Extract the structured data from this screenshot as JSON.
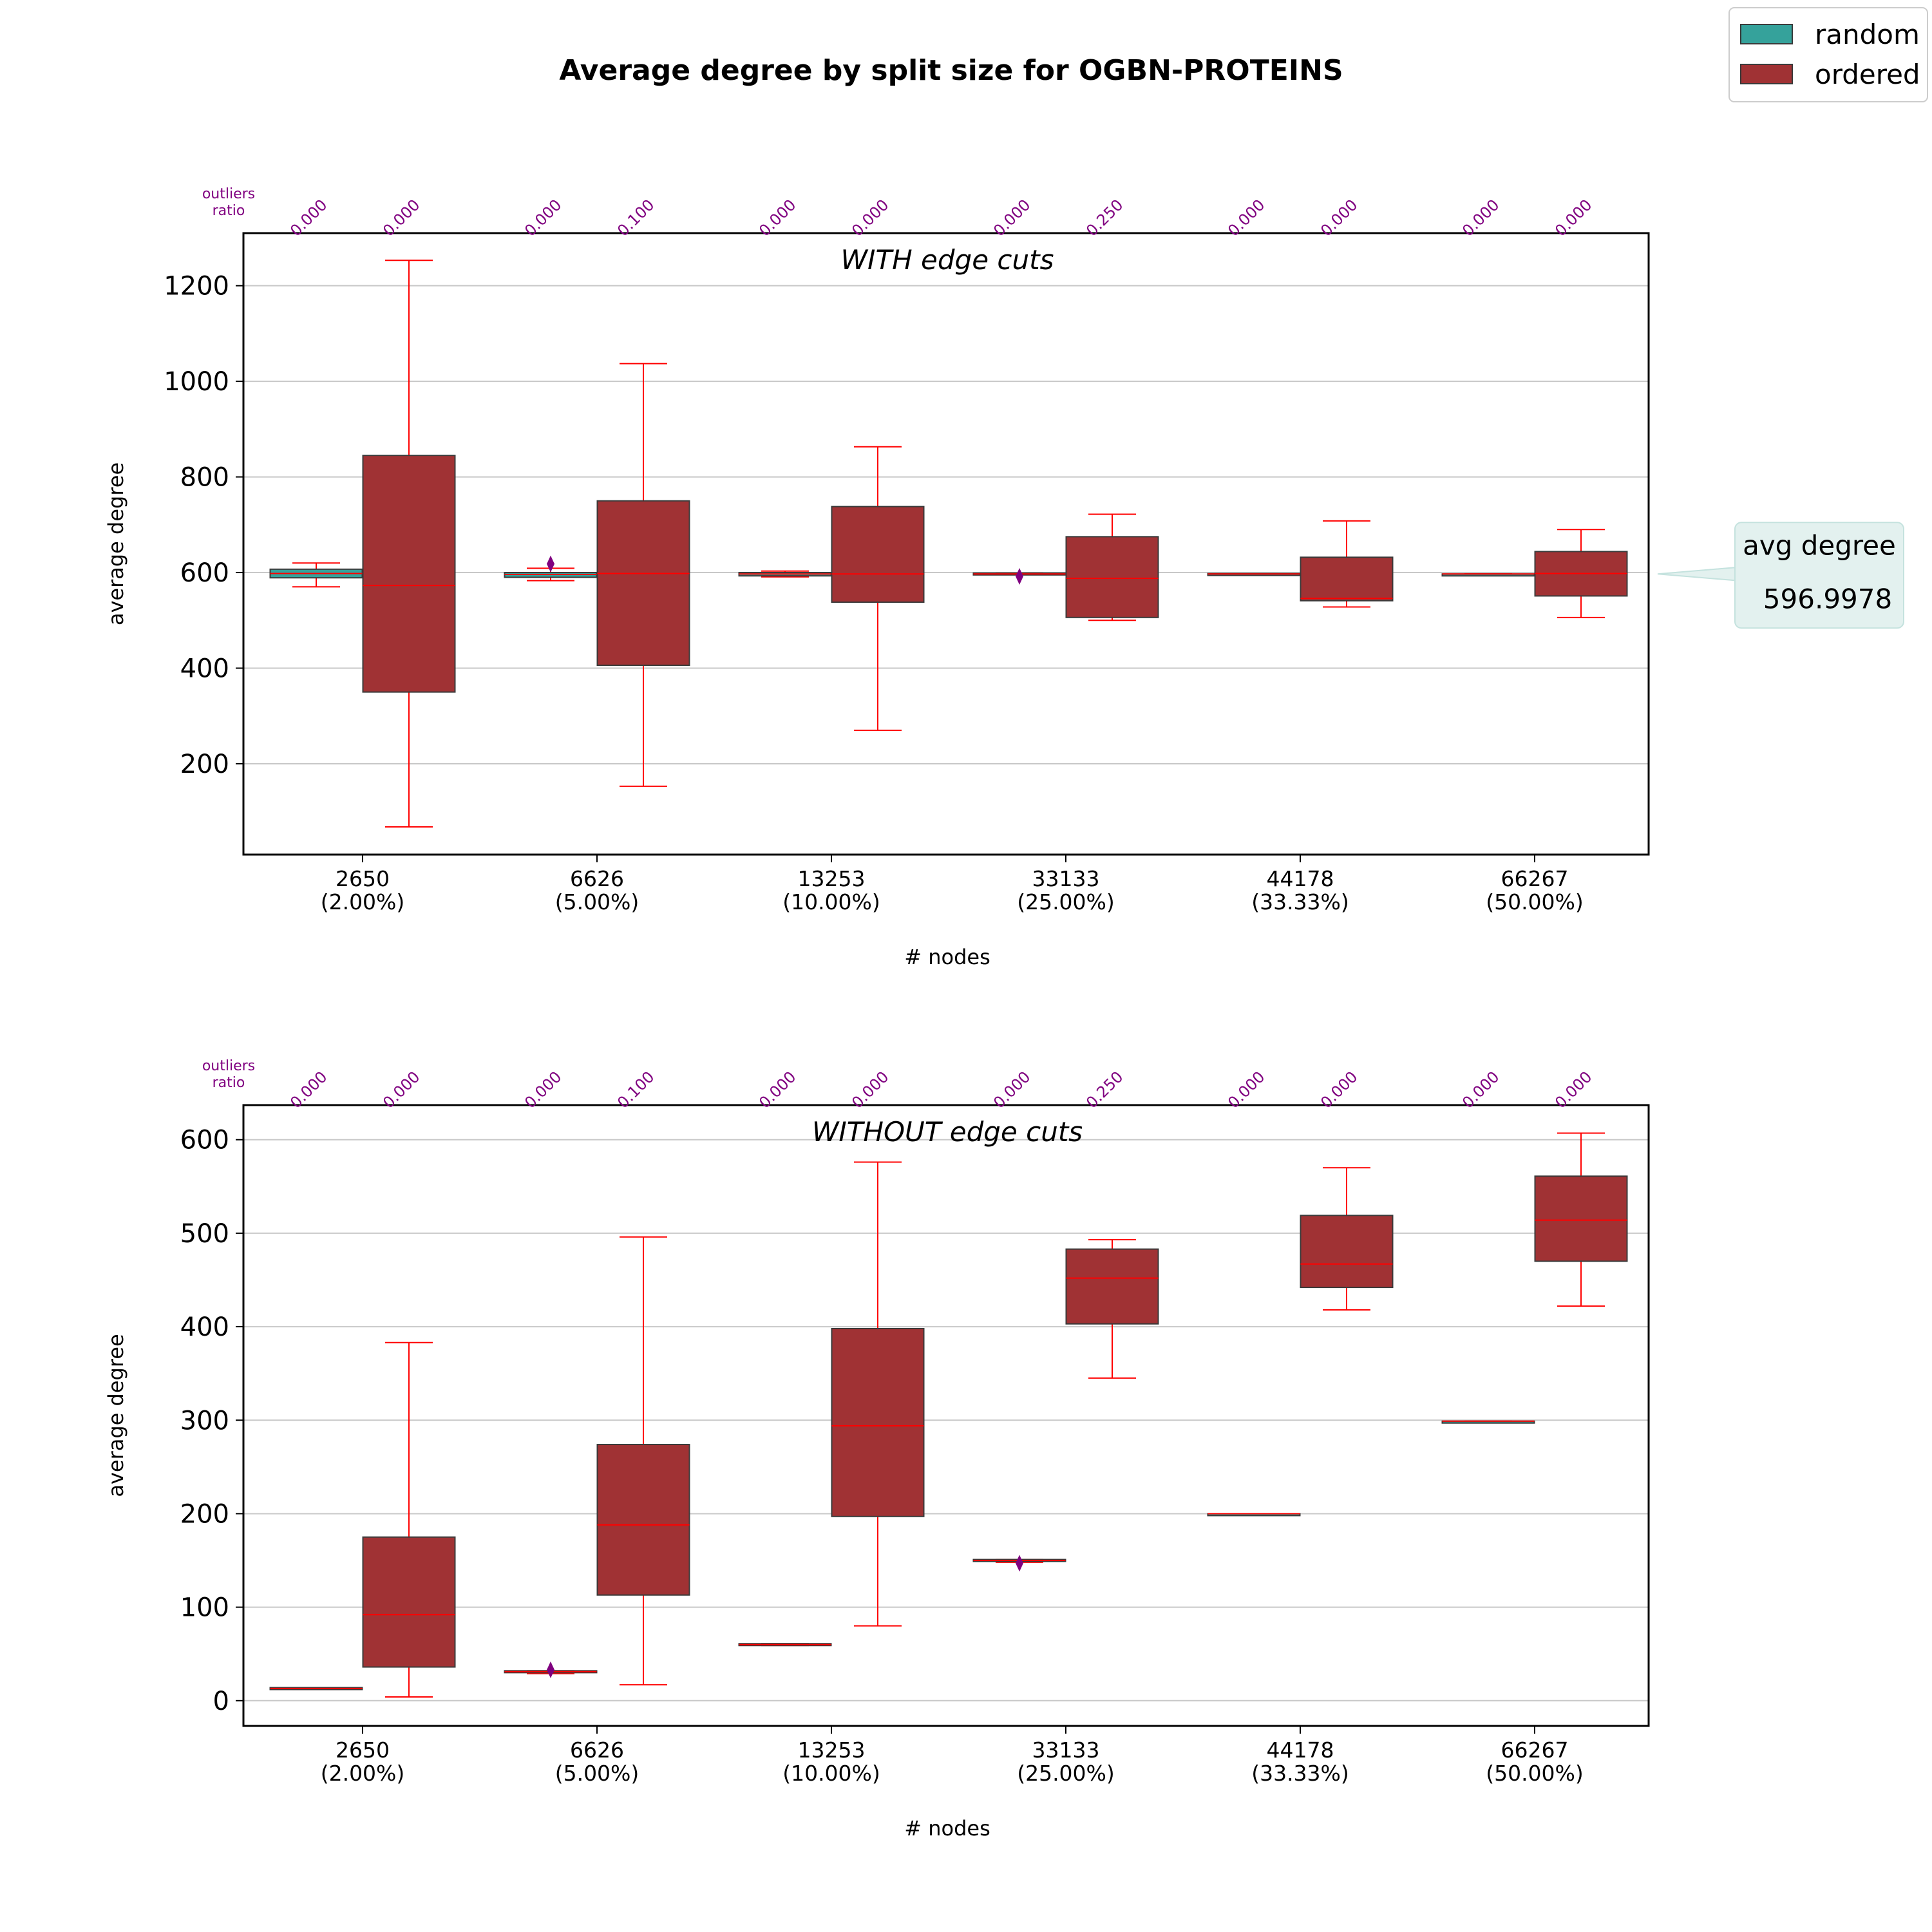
{
  "chart_data": {
    "type": "box",
    "title": "Average degree by split size for OGBN-PROTEINS",
    "legend": {
      "placement": "top-right",
      "entries": [
        {
          "label": "random",
          "color": "#35a29b"
        },
        {
          "label": "ordered",
          "color": "#a03234"
        }
      ]
    },
    "outlier_header": [
      "outliers",
      "ratio"
    ],
    "categories": [
      {
        "nodes": "2650",
        "pct": "(2.00%)"
      },
      {
        "nodes": "6626",
        "pct": "(5.00%)"
      },
      {
        "nodes": "13253",
        "pct": "(10.00%)"
      },
      {
        "nodes": "33133",
        "pct": "(25.00%)"
      },
      {
        "nodes": "44178",
        "pct": "(33.33%)"
      },
      {
        "nodes": "66267",
        "pct": "(50.00%)"
      }
    ],
    "panels": [
      {
        "subtitle": "WITH edge cuts",
        "xlabel": "# nodes",
        "ylabel": "average degree",
        "ylim": [
          10,
          1310
        ],
        "yticks": [
          200,
          400,
          600,
          800,
          1000,
          1200
        ],
        "outlier_ratios": [
          "0.000",
          "0.000",
          "0.000",
          "0.100",
          "0.000",
          "0.000",
          "0.000",
          "0.250",
          "0.000",
          "0.000",
          "0.000",
          "0.000"
        ],
        "callout": {
          "label": "avg degree",
          "value": "596.9978",
          "y": 597
        },
        "series": [
          {
            "name": "random",
            "boxes": [
              {
                "whislo": 570,
                "q1": 589,
                "med": 598,
                "q3": 607,
                "whishi": 620,
                "fliers": []
              },
              {
                "whislo": 583,
                "q1": 590,
                "med": 596,
                "q3": 600,
                "whishi": 609,
                "fliers": [
                  618
                ]
              },
              {
                "whislo": 591,
                "q1": 593,
                "med": 597,
                "q3": 600,
                "whishi": 603,
                "fliers": []
              },
              {
                "whislo": 596,
                "q1": 597,
                "med": 597,
                "q3": 599,
                "whishi": 599,
                "fliers": [
                  592
                ]
              },
              {
                "whislo": 596,
                "q1": 596,
                "med": 597,
                "q3": 598,
                "whishi": 598,
                "fliers": []
              },
              {
                "whislo": 597,
                "q1": 597,
                "med": 597,
                "q3": 597,
                "whishi": 597,
                "fliers": []
              }
            ]
          },
          {
            "name": "ordered",
            "boxes": [
              {
                "whislo": 68,
                "q1": 350,
                "med": 573,
                "q3": 845,
                "whishi": 1253,
                "fliers": []
              },
              {
                "whislo": 153,
                "q1": 406,
                "med": 598,
                "q3": 750,
                "whishi": 1037,
                "fliers": []
              },
              {
                "whislo": 270,
                "q1": 538,
                "med": 597,
                "q3": 738,
                "whishi": 863,
                "fliers": []
              },
              {
                "whislo": 500,
                "q1": 506,
                "med": 588,
                "q3": 675,
                "whishi": 722,
                "fliers": []
              },
              {
                "whislo": 528,
                "q1": 541,
                "med": 546,
                "q3": 632,
                "whishi": 708,
                "fliers": []
              },
              {
                "whislo": 506,
                "q1": 551,
                "med": 598,
                "q3": 644,
                "whishi": 690,
                "fliers": []
              }
            ]
          }
        ]
      },
      {
        "subtitle": "WITHOUT edge cuts",
        "xlabel": "# nodes",
        "ylabel": "average degree",
        "ylim": [
          -27,
          637
        ],
        "yticks": [
          0,
          100,
          200,
          300,
          400,
          500,
          600
        ],
        "outlier_ratios": [
          "0.000",
          "0.000",
          "0.000",
          "0.100",
          "0.000",
          "0.000",
          "0.000",
          "0.250",
          "0.000",
          "0.000",
          "0.000",
          "0.000"
        ],
        "series": [
          {
            "name": "random",
            "boxes": [
              {
                "whislo": 12,
                "q1": 13,
                "med": 13,
                "q3": 14,
                "whishi": 14,
                "fliers": []
              },
              {
                "whislo": 29,
                "q1": 30,
                "med": 31,
                "q3": 32,
                "whishi": 32,
                "fliers": [
                  33
                ]
              },
              {
                "whislo": 59,
                "q1": 60,
                "med": 60,
                "q3": 61,
                "whishi": 61,
                "fliers": []
              },
              {
                "whislo": 148,
                "q1": 149,
                "med": 150,
                "q3": 151,
                "whishi": 151,
                "fliers": [
                  147
                ]
              },
              {
                "whislo": 199,
                "q1": 199,
                "med": 200,
                "q3": 200,
                "whishi": 200,
                "fliers": []
              },
              {
                "whislo": 298,
                "q1": 298,
                "med": 299,
                "q3": 299,
                "whishi": 299,
                "fliers": []
              }
            ]
          },
          {
            "name": "ordered",
            "boxes": [
              {
                "whislo": 4,
                "q1": 36,
                "med": 92,
                "q3": 175,
                "whishi": 383,
                "fliers": []
              },
              {
                "whislo": 17,
                "q1": 113,
                "med": 188,
                "q3": 274,
                "whishi": 496,
                "fliers": []
              },
              {
                "whislo": 80,
                "q1": 197,
                "med": 294,
                "q3": 398,
                "whishi": 576,
                "fliers": []
              },
              {
                "whislo": 345,
                "q1": 403,
                "med": 452,
                "q3": 483,
                "whishi": 493,
                "fliers": []
              },
              {
                "whislo": 418,
                "q1": 442,
                "med": 467,
                "q3": 519,
                "whishi": 570,
                "fliers": []
              },
              {
                "whislo": 422,
                "q1": 470,
                "med": 514,
                "q3": 561,
                "whishi": 607,
                "fliers": []
              }
            ]
          }
        ]
      }
    ]
  }
}
